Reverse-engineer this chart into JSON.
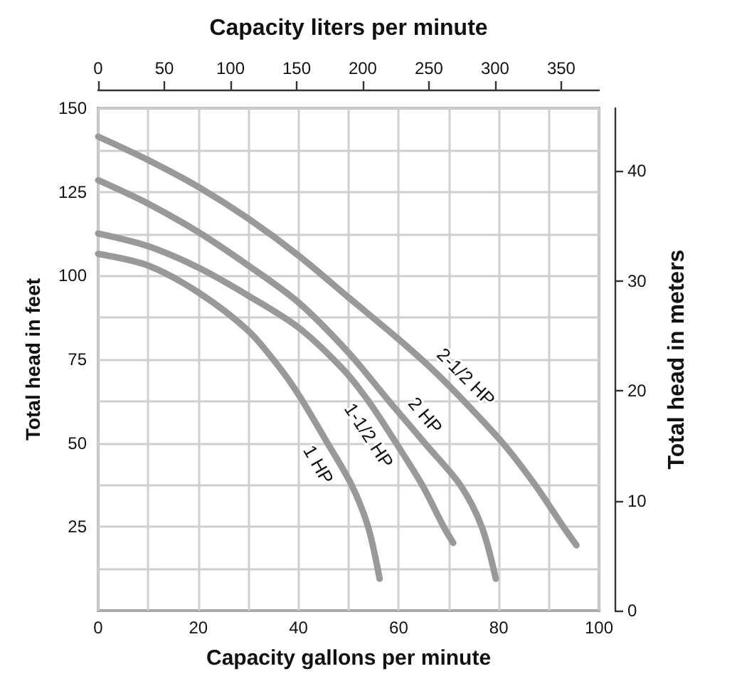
{
  "chart_data": {
    "type": "line",
    "xlabel": "Capacity gallons per minute",
    "ylabel": "Total head in feet",
    "x2label": "Capacity liters per minute",
    "y2label": "Total head in meters",
    "xlim": [
      0,
      100
    ],
    "xticks": [
      0,
      {
        "value": 10,
        "label": null
      },
      20,
      {
        "value": 30,
        "label": null
      },
      40,
      {
        "value": 50,
        "label": null
      },
      60,
      {
        "value": 70,
        "label": null
      },
      80,
      {
        "value": 90,
        "label": null
      },
      100
    ],
    "ylim": [
      0,
      150
    ],
    "yticks": [
      {
        "value": 12.5,
        "label": null
      },
      25,
      {
        "value": 37.5,
        "label": null
      },
      50,
      {
        "value": 62.5,
        "label": null
      },
      75,
      {
        "value": 87.5,
        "label": null
      },
      100,
      {
        "value": 112.5,
        "label": null
      },
      125,
      {
        "value": 137.5,
        "label": null
      },
      150
    ],
    "x2lim": [
      0,
      378.54
    ],
    "x2ticks": [
      0,
      50,
      100,
      150,
      200,
      250,
      300,
      350
    ],
    "y2lim": [
      0,
      45.72
    ],
    "y2ticks": [
      0,
      10,
      20,
      30,
      40
    ],
    "grid": true,
    "marker": "none",
    "series": [
      {
        "name": "1 HP",
        "color": "#999999",
        "x": [
          0,
          10,
          20,
          30,
          36.4,
          40,
          45.8,
          50.6,
          53.9,
          56.2
        ],
        "values": [
          106.5,
          103,
          95,
          83.5,
          72.2,
          64.5,
          50,
          37.5,
          25,
          9.5
        ]
      },
      {
        "name": "1-1/2 HP",
        "color": "#999999",
        "x": [
          0,
          10,
          20,
          30,
          40,
          48.8,
          54,
          59.5,
          64.7,
          69,
          70.9
        ],
        "values": [
          112.6,
          108.8,
          102.4,
          94,
          84.5,
          72.2,
          62.5,
          50,
          37.5,
          25,
          20.2
        ]
      },
      {
        "name": "2 HP",
        "color": "#999999",
        "x": [
          0,
          10,
          20,
          30,
          40,
          50,
          58.1,
          65.5,
          72.3,
          76.6,
          79.4
        ],
        "values": [
          128.5,
          121.5,
          113,
          103,
          92,
          77,
          62.5,
          49.5,
          37.5,
          25,
          9.5
        ]
      },
      {
        "name": "2-1/2 HP",
        "color": "#999999",
        "x": [
          0,
          10,
          20,
          30,
          40,
          50,
          60,
          66.6,
          72.3,
          80.8,
          87.4,
          92.9,
          95.5
        ],
        "values": [
          141.5,
          134.5,
          126.5,
          117,
          106,
          93.5,
          81,
          72.2,
          63.7,
          50,
          37.2,
          25,
          19.5
        ]
      }
    ]
  }
}
